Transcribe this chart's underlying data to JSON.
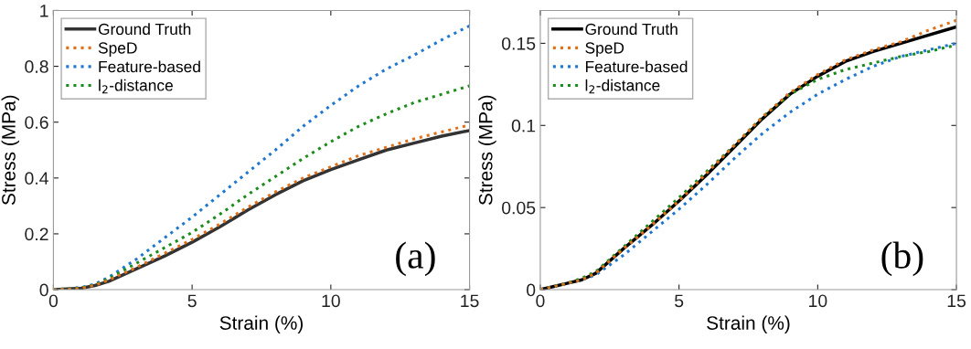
{
  "chart_data": [
    {
      "type": "line",
      "xlabel": "Strain (%)",
      "ylabel": "Stress (MPa)",
      "annotations": [
        "(a)"
      ],
      "legend": "top left",
      "grid": false,
      "x": [
        0,
        1,
        1.5,
        2,
        3,
        4,
        5,
        6,
        7,
        8,
        9,
        10,
        11,
        12,
        13,
        14,
        15
      ],
      "xlim": [
        0,
        15
      ],
      "xticks": [
        0,
        5,
        10,
        15
      ],
      "ylim": [
        0,
        1
      ],
      "yticks": [
        0,
        0.2,
        0.4,
        0.6,
        0.8,
        1
      ],
      "series": [
        {
          "name": "Ground Truth",
          "color": "#333333",
          "line_style": "solid",
          "values": [
            0,
            0.005,
            0.015,
            0.03,
            0.075,
            0.12,
            0.17,
            0.225,
            0.285,
            0.34,
            0.39,
            0.43,
            0.465,
            0.5,
            0.525,
            0.55,
            0.57
          ]
        },
        {
          "name": "SpeD",
          "color": "#e0701a",
          "line_style": "dotted",
          "values": [
            0,
            0.005,
            0.016,
            0.035,
            0.08,
            0.13,
            0.18,
            0.235,
            0.295,
            0.35,
            0.4,
            0.44,
            0.48,
            0.51,
            0.54,
            0.565,
            0.59
          ]
        },
        {
          "name": "Feature-based",
          "color": "#1f77d0",
          "line_style": "dotted",
          "values": [
            0,
            0.008,
            0.02,
            0.045,
            0.11,
            0.185,
            0.26,
            0.34,
            0.42,
            0.5,
            0.585,
            0.66,
            0.73,
            0.79,
            0.84,
            0.895,
            0.945
          ]
        },
        {
          "name": "l$_{2}$-distance",
          "color": "#1a8c1a",
          "line_style": "dotted",
          "values": [
            0,
            0.006,
            0.018,
            0.04,
            0.095,
            0.15,
            0.205,
            0.27,
            0.34,
            0.405,
            0.47,
            0.53,
            0.585,
            0.63,
            0.67,
            0.7,
            0.73
          ]
        }
      ]
    },
    {
      "type": "line",
      "xlabel": "Strain (%)",
      "ylabel": "Stress (MPa)",
      "annotations": [
        "(b)"
      ],
      "legend": "top left",
      "grid": false,
      "x": [
        0,
        1,
        1.5,
        2,
        3,
        4,
        5,
        6,
        7,
        8,
        9,
        10,
        11,
        12,
        13,
        14,
        15
      ],
      "xlim": [
        0,
        15
      ],
      "xticks": [
        0,
        5,
        10,
        15
      ],
      "ylim": [
        0,
        0.17
      ],
      "yticks": [
        0,
        0.05,
        0.1,
        0.15
      ],
      "series": [
        {
          "name": "Ground Truth",
          "color": "#000000",
          "line_style": "solid",
          "values": [
            0,
            0.004,
            0.006,
            0.01,
            0.025,
            0.039,
            0.054,
            0.07,
            0.087,
            0.104,
            0.119,
            0.13,
            0.139,
            0.145,
            0.15,
            0.155,
            0.16
          ]
        },
        {
          "name": "SpeD",
          "color": "#e0701a",
          "line_style": "dotted",
          "values": [
            0,
            0.004,
            0.006,
            0.01,
            0.025,
            0.039,
            0.054,
            0.071,
            0.088,
            0.105,
            0.12,
            0.131,
            0.14,
            0.146,
            0.151,
            0.158,
            0.164
          ]
        },
        {
          "name": "Feature-based",
          "color": "#1f77d0",
          "line_style": "dotted",
          "values": [
            0,
            0.004,
            0.006,
            0.009,
            0.021,
            0.035,
            0.049,
            0.064,
            0.08,
            0.095,
            0.108,
            0.119,
            0.128,
            0.136,
            0.142,
            0.146,
            0.15
          ]
        },
        {
          "name": "l$_{2}$-distance",
          "color": "#1a8c1a",
          "line_style": "dotted",
          "values": [
            0,
            0.004,
            0.007,
            0.011,
            0.026,
            0.041,
            0.056,
            0.072,
            0.088,
            0.105,
            0.119,
            0.128,
            0.134,
            0.138,
            0.142,
            0.145,
            0.149
          ]
        }
      ]
    }
  ]
}
